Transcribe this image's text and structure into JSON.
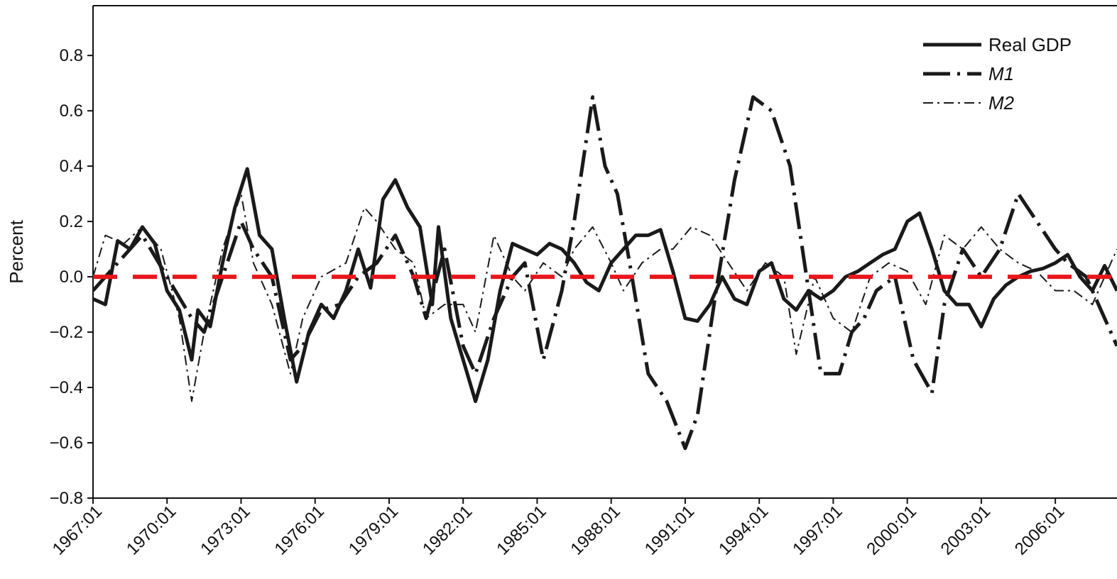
{
  "chart_data": {
    "type": "line",
    "title": "",
    "xlabel": "",
    "ylabel": "Percent",
    "ylim": [
      -0.8,
      0.98
    ],
    "xlim": [
      "1967:01",
      "2008:03"
    ],
    "yticks": [
      {
        "value": 0.8,
        "label": "0.8"
      },
      {
        "value": 0.6,
        "label": "0.6"
      },
      {
        "value": 0.4,
        "label": "0.4"
      },
      {
        "value": 0.2,
        "label": "0.2"
      },
      {
        "value": 0.0,
        "label": "0.0"
      },
      {
        "value": -0.2,
        "label": "−0.2"
      },
      {
        "value": -0.4,
        "label": "−0.4"
      },
      {
        "value": -0.6,
        "label": "−0.6"
      },
      {
        "value": -0.8,
        "label": "−0.8"
      }
    ],
    "xticks": [
      "1967:01",
      "1970:01",
      "1973:01",
      "1976:01",
      "1979:01",
      "1982:01",
      "1985:01",
      "1988:01",
      "1991:01",
      "1994:01",
      "1997:01",
      "2000:01",
      "2003:01",
      "2006:01"
    ],
    "grid": false,
    "legend_position": "top-right",
    "reference_line": {
      "y": 0.0,
      "color": "#e8161b",
      "style": "dashed"
    },
    "series": [
      {
        "name": "Real GDP",
        "color": "#1a1a1a",
        "style": "solid",
        "x": [
          "1967:01",
          "1967:03",
          "1968:01",
          "1968:03",
          "1969:01",
          "1969:03",
          "1970:01",
          "1970:03",
          "1971:01",
          "1971:02",
          "1971:04",
          "1972:02",
          "1972:04",
          "1973:02",
          "1973:04",
          "1974:02",
          "1974:04",
          "1975:02",
          "1975:04",
          "1976:02",
          "1976:04",
          "1977:02",
          "1977:04",
          "1978:02",
          "1978:04",
          "1979:02",
          "1979:04",
          "1980:02",
          "1980:04",
          "1981:01",
          "1981:03",
          "1982:01",
          "1982:03",
          "1983:01",
          "1983:03",
          "1984:01",
          "1984:03",
          "1985:01",
          "1985:03",
          "1986:01",
          "1986:03",
          "1987:01",
          "1987:03",
          "1988:01",
          "1988:03",
          "1989:01",
          "1989:03",
          "1990:01",
          "1990:03",
          "1991:01",
          "1991:03",
          "1992:01",
          "1992:03",
          "1993:01",
          "1993:03",
          "1994:01",
          "1994:03",
          "1995:01",
          "1995:03",
          "1996:01",
          "1996:03",
          "1997:01",
          "1997:03",
          "1998:01",
          "1998:03",
          "1999:01",
          "1999:03",
          "2000:01",
          "2000:03",
          "2001:01",
          "2001:03",
          "2002:01",
          "2002:03",
          "2003:01",
          "2003:03",
          "2004:01",
          "2004:03",
          "2005:01",
          "2005:03",
          "2006:01",
          "2006:03",
          "2007:01",
          "2007:03",
          "2008:01",
          "2008:03"
        ],
        "y": [
          -0.08,
          -0.1,
          0.13,
          0.1,
          0.18,
          0.12,
          -0.05,
          -0.12,
          -0.3,
          -0.12,
          -0.18,
          0.05,
          0.25,
          0.39,
          0.15,
          0.1,
          -0.15,
          -0.38,
          -0.2,
          -0.1,
          -0.15,
          -0.05,
          0.1,
          -0.04,
          0.28,
          0.35,
          0.25,
          0.18,
          -0.1,
          0.18,
          -0.15,
          -0.3,
          -0.45,
          -0.3,
          -0.05,
          0.12,
          0.1,
          0.08,
          0.12,
          0.1,
          0.05,
          -0.02,
          -0.05,
          0.05,
          0.1,
          0.15,
          0.15,
          0.17,
          0.02,
          -0.15,
          -0.16,
          -0.1,
          0.0,
          -0.08,
          -0.1,
          0.02,
          0.05,
          -0.08,
          -0.12,
          -0.05,
          -0.08,
          -0.05,
          0.0,
          0.02,
          0.05,
          0.08,
          0.1,
          0.2,
          0.23,
          0.1,
          -0.05,
          -0.1,
          -0.1,
          -0.18,
          -0.08,
          -0.03,
          0.0,
          0.02,
          0.03,
          0.05,
          0.08,
          0.0,
          -0.05,
          0.04,
          -0.05
        ]
      },
      {
        "name": "M1",
        "color": "#1a1a1a",
        "style": "dashdot-heavy",
        "x": [
          "1967:01",
          "1968:01",
          "1969:01",
          "1970:01",
          "1971:01",
          "1971:03",
          "1972:02",
          "1973:01",
          "1973:03",
          "1974:02",
          "1975:01",
          "1975:03",
          "1976:02",
          "1977:01",
          "1977:04",
          "1978:03",
          "1979:02",
          "1980:01",
          "1980:03",
          "1981:02",
          "1982:01",
          "1982:03",
          "1983:02",
          "1984:01",
          "1984:03",
          "1985:02",
          "1986:01",
          "1986:03",
          "1987:02",
          "1987:04",
          "1988:02",
          "1988:04",
          "1989:03",
          "1990:02",
          "1991:01",
          "1991:03",
          "1992:02",
          "1993:01",
          "1993:04",
          "1994:03",
          "1995:02",
          "1996:01",
          "1996:03",
          "1997:02",
          "1997:04",
          "1998:02",
          "1998:04",
          "1999:03",
          "2000:02",
          "2001:01",
          "2001:03",
          "2002:02",
          "2003:01",
          "2003:04",
          "2004:03",
          "2005:02",
          "2006:01",
          "2006:03",
          "2007:02",
          "2008:01",
          "2008:03"
        ],
        "y": [
          -0.05,
          0.05,
          0.15,
          0.0,
          -0.15,
          -0.2,
          0.0,
          0.2,
          0.1,
          0.0,
          -0.3,
          -0.25,
          -0.12,
          -0.1,
          0.0,
          0.05,
          0.15,
          0.0,
          -0.15,
          0.1,
          -0.25,
          -0.35,
          -0.15,
          0.0,
          0.05,
          -0.3,
          -0.05,
          0.2,
          0.65,
          0.4,
          0.3,
          0.05,
          -0.35,
          -0.45,
          -0.62,
          -0.5,
          -0.05,
          0.35,
          0.65,
          0.6,
          0.4,
          -0.05,
          -0.35,
          -0.35,
          -0.2,
          -0.15,
          -0.05,
          0.0,
          -0.3,
          -0.42,
          -0.1,
          0.1,
          0.0,
          0.1,
          0.3,
          0.2,
          0.1,
          0.05,
          0.0,
          -0.15,
          -0.25
        ]
      },
      {
        "name": "M2",
        "color": "#1a1a1a",
        "style": "dashdot-thin",
        "x": [
          "1967:01",
          "1967:03",
          "1968:02",
          "1969:01",
          "1969:04",
          "1970:03",
          "1971:01",
          "1971:03",
          "1972:02",
          "1973:01",
          "1973:03",
          "1974:02",
          "1975:01",
          "1975:03",
          "1976:02",
          "1977:02",
          "1978:01",
          "1978:03",
          "1979:02",
          "1980:01",
          "1980:03",
          "1981:02",
          "1982:01",
          "1982:03",
          "1983:02",
          "1984:01",
          "1984:03",
          "1985:02",
          "1986:01",
          "1986:03",
          "1987:02",
          "1988:01",
          "1988:03",
          "1989:02",
          "1990:01",
          "1990:03",
          "1991:02",
          "1992:01",
          "1992:04",
          "1993:03",
          "1994:02",
          "1995:01",
          "1995:03",
          "1996:02",
          "1997:01",
          "1997:04",
          "1998:03",
          "1999:02",
          "2000:01",
          "2000:04",
          "2001:03",
          "2002:02",
          "2003:01",
          "2003:04",
          "2004:03",
          "2005:02",
          "2006:01",
          "2006:04",
          "2007:03",
          "2008:02",
          "2008:03"
        ],
        "y": [
          0.0,
          0.15,
          0.12,
          0.18,
          0.1,
          -0.15,
          -0.45,
          -0.2,
          0.1,
          0.3,
          0.05,
          -0.1,
          -0.35,
          -0.15,
          0.0,
          0.05,
          0.25,
          0.2,
          0.1,
          0.05,
          -0.15,
          -0.1,
          -0.1,
          -0.2,
          0.15,
          0.0,
          -0.05,
          0.05,
          0.0,
          0.1,
          0.18,
          0.05,
          -0.05,
          0.05,
          0.1,
          0.1,
          0.18,
          0.15,
          0.05,
          -0.05,
          0.05,
          0.0,
          -0.28,
          0.0,
          -0.15,
          -0.2,
          0.0,
          0.05,
          0.02,
          -0.1,
          0.15,
          0.1,
          0.18,
          0.1,
          0.05,
          0.02,
          -0.05,
          -0.05,
          -0.1,
          0.05,
          0.1
        ]
      }
    ]
  }
}
